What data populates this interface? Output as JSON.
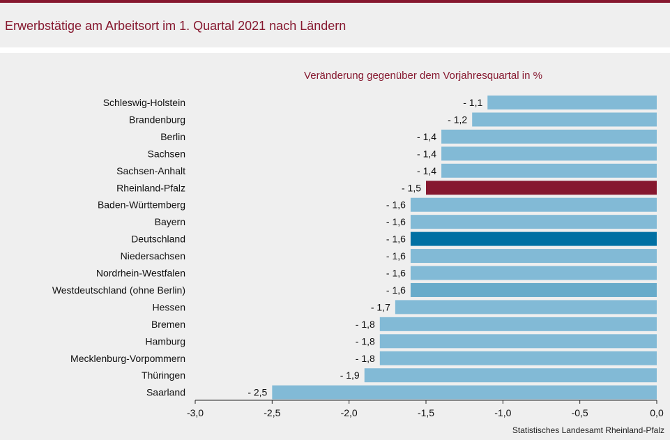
{
  "header": {
    "title": "Erwerbstätige am Arbeitsort im 1. Quartal 2021 nach Ländern"
  },
  "footer": {
    "source": "Statistisches Landesamt Rheinland-Pfalz"
  },
  "colors": {
    "default_bar": "#82bad6",
    "rheinland_pfalz": "#86182f",
    "deutschland": "#0070a3",
    "westdeutschland": "#68abca",
    "title": "#86182f"
  },
  "chart_data": {
    "type": "bar",
    "orientation": "horizontal",
    "title": "Veränderung gegenüber dem Vorjahresquartal in %",
    "categories": [
      "Schleswig-Holstein",
      "Brandenburg",
      "Berlin",
      "Sachsen",
      "Sachsen-Anhalt",
      "Rheinland-Pfalz",
      "Baden-Württemberg",
      "Bayern",
      "Deutschland",
      "Niedersachsen",
      "Nordrhein-Westfalen",
      "Westdeutschland (ohne Berlin)",
      "Hessen",
      "Bremen",
      "Hamburg",
      "Mecklenburg-Vorpommern",
      "Thüringen",
      "Saarland"
    ],
    "values": [
      -1.1,
      -1.2,
      -1.4,
      -1.4,
      -1.4,
      -1.5,
      -1.6,
      -1.6,
      -1.6,
      -1.6,
      -1.6,
      -1.6,
      -1.7,
      -1.8,
      -1.8,
      -1.8,
      -1.9,
      -2.5
    ],
    "data_labels": [
      "- 1,1",
      "- 1,2",
      "- 1,4",
      "- 1,4",
      "- 1,4",
      "- 1,5",
      "- 1,6",
      "- 1,6",
      "- 1,6",
      "- 1,6",
      "- 1,6",
      "- 1,6",
      "- 1,7",
      "- 1,8",
      "- 1,8",
      "- 1,8",
      "- 1,9",
      "- 2,5"
    ],
    "highlight": {
      "Rheinland-Pfalz": "rheinland_pfalz",
      "Deutschland": "deutschland",
      "Westdeutschland (ohne Berlin)": "westdeutschland"
    },
    "xlim": [
      -3.0,
      0.0
    ],
    "x_ticks": [
      -3.0,
      -2.5,
      -2.0,
      -1.5,
      -1.0,
      -0.5,
      0.0
    ],
    "x_tick_labels": [
      "-3,0",
      "-2,5",
      "-2,0",
      "-1,5",
      "-1,0",
      "-0,5",
      "0,0"
    ],
    "grid": false
  }
}
